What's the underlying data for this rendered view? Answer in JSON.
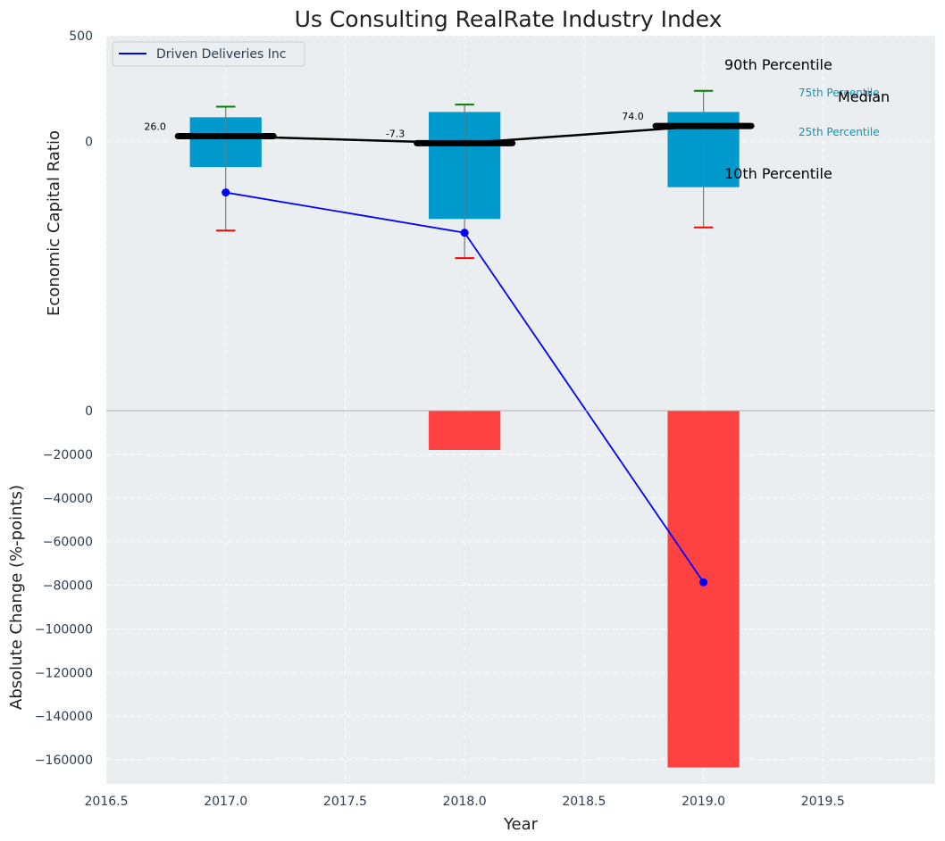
{
  "chart_data": {
    "type": "box+bar",
    "title": "Us Consulting RealRate Industry Index",
    "xlabel": "Year",
    "x_ticks": [
      "2016.5",
      "2017.0",
      "2017.5",
      "2018.0",
      "2018.5",
      "2019.0",
      "2019.5"
    ],
    "xlim": [
      2016.5,
      2019.97
    ],
    "top": {
      "ylabel": "Economic Capital Ratio",
      "ylim": [
        -1270,
        500
      ],
      "y_ticks": [
        "500",
        "0"
      ],
      "boxes": [
        {
          "year": 2017,
          "p10": -420,
          "p25": -120,
          "median": 26.0,
          "p75": 115,
          "p90": 165,
          "median_label": "26.0"
        },
        {
          "year": 2018,
          "p10": -550,
          "p25": -365,
          "median": -7.3,
          "p75": 140,
          "p90": 175,
          "median_label": "-7.3"
        },
        {
          "year": 2019,
          "p10": -405,
          "p25": -215,
          "median": 74.0,
          "p75": 140,
          "p90": 240,
          "median_label": "74.0"
        }
      ],
      "company_series": {
        "name": "Driven Deliveries Inc",
        "x": [
          2017,
          2018,
          2019
        ],
        "y": [
          -240,
          -430,
          -2080
        ]
      },
      "legend": {
        "label": "Driven Deliveries Inc",
        "location": "upper-left"
      },
      "annotations": {
        "p90": "90th Percentile",
        "p75": "75th Percentile",
        "median": "Median",
        "p25": "25th Percentile",
        "p10": "10th Percentile"
      }
    },
    "bottom": {
      "type": "bar",
      "ylabel": "Absolute Change (%-points)",
      "ylim": [
        -171000,
        0
      ],
      "y_ticks": [
        0,
        -20000,
        -40000,
        -60000,
        -80000,
        -100000,
        -120000,
        -140000,
        -160000
      ],
      "y_tick_labels": [
        "0",
        "−20000",
        "−40000",
        "−60000",
        "−80000",
        "−100000",
        "−120000",
        "−140000",
        "−160000"
      ],
      "bars": [
        {
          "year": 2018,
          "value": -18000
        },
        {
          "year": 2019,
          "value": -163500
        }
      ]
    },
    "colors": {
      "box": "#0099cc",
      "median": "#000000",
      "series": "#0000ff",
      "bar": "#ff3333",
      "p90_cap": "#008000",
      "p10_cap": "#ff0000",
      "label_cyan": "#0099bb"
    }
  }
}
